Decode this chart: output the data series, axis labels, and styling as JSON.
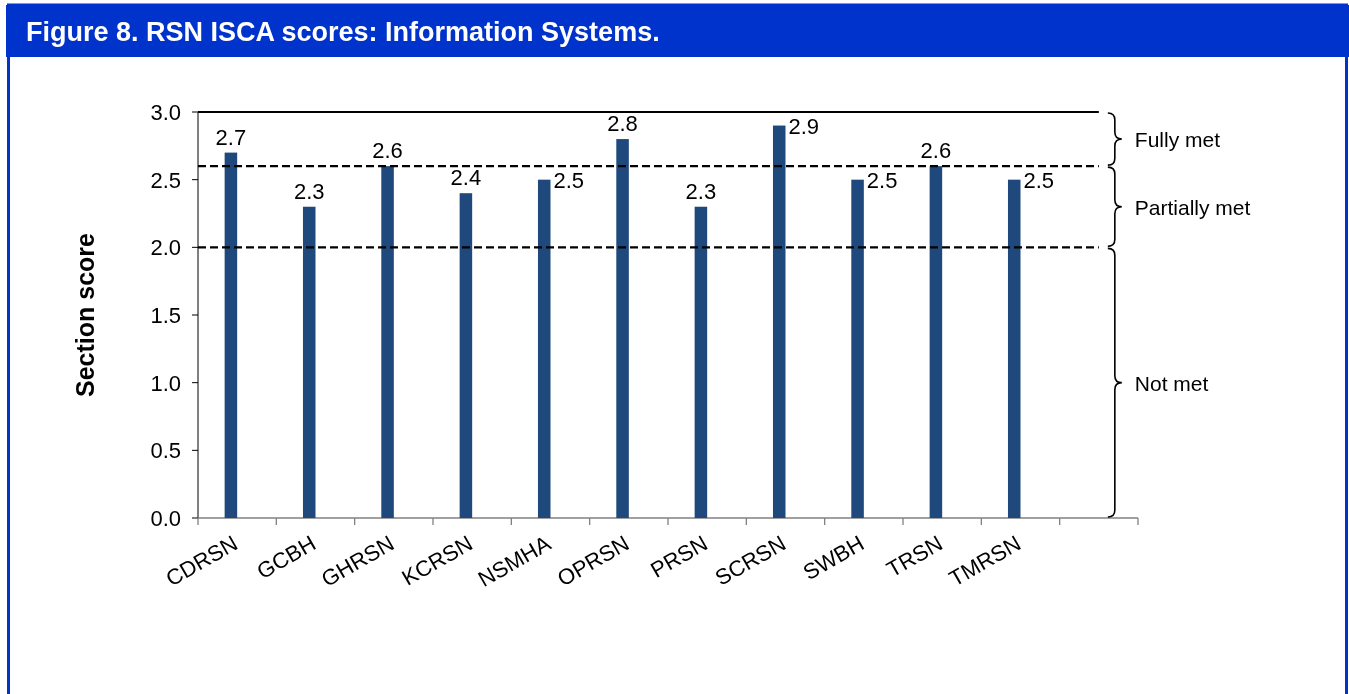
{
  "chart_data": {
    "type": "bar",
    "title": "Figure 8. RSN ISCA scores: Information Systems.",
    "ylabel": "Section score",
    "categories": [
      "CDRSN",
      "GCBH",
      "GHRSN",
      "KCRSN",
      "NSMHA",
      "OPRSN",
      "PRSN",
      "SCRSN",
      "SWBH",
      "TRSN",
      "TMRSN",
      null
    ],
    "values": [
      2.7,
      2.3,
      2.6,
      2.4,
      2.5,
      2.8,
      2.3,
      2.9,
      2.5,
      2.6,
      2.5,
      null
    ],
    "color": "#1f497d",
    "ylim": [
      0,
      3
    ],
    "yticks": [
      {
        "value": 0,
        "label": "0.0"
      },
      {
        "value": 0.5,
        "label": "0.5"
      },
      {
        "value": 1,
        "label": "1.0"
      },
      {
        "value": 1.5,
        "label": "1.5"
      },
      {
        "value": 2,
        "label": "2.0"
      },
      {
        "value": 2.5,
        "label": "2.5"
      },
      {
        "value": 3,
        "label": "3.0"
      }
    ],
    "data_labels": true,
    "ref_lines": [
      {
        "axis": "y",
        "value": 3,
        "line_style": "solid"
      },
      {
        "axis": "y",
        "value": 2.6,
        "line_style": "dashed"
      },
      {
        "axis": "y",
        "value": 2,
        "line_style": "dashed"
      }
    ],
    "annotations": [
      "Fully met",
      "Partially met",
      "Not met"
    ]
  }
}
